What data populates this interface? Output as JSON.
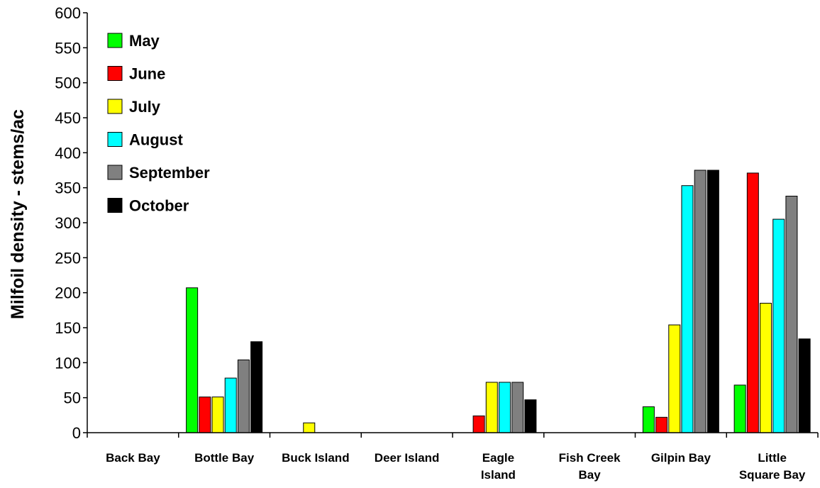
{
  "chart_data": {
    "type": "bar",
    "title": "",
    "xlabel": "",
    "ylabel": "Milfoil density - stems/ac",
    "ylim": [
      0,
      600
    ],
    "yticks": [
      0,
      50,
      100,
      150,
      200,
      250,
      300,
      350,
      400,
      450,
      500,
      550,
      600
    ],
    "grid": false,
    "legend_position": "top-left",
    "categories": [
      [
        "Back Bay"
      ],
      [
        "Bottle Bay"
      ],
      [
        "Buck Island"
      ],
      [
        "Deer Island"
      ],
      [
        "Eagle",
        "Island"
      ],
      [
        "Fish Creek",
        "Bay"
      ],
      [
        "Gilpin Bay"
      ],
      [
        "Little",
        "Square Bay"
      ]
    ],
    "series": [
      {
        "name": "May",
        "color": "#00ff00",
        "values": [
          0,
          207,
          0,
          0,
          0,
          0,
          37,
          68
        ]
      },
      {
        "name": "June",
        "color": "#ff0000",
        "values": [
          0,
          51,
          0,
          0,
          24,
          0,
          22,
          371
        ]
      },
      {
        "name": "July",
        "color": "#ffff00",
        "values": [
          0,
          51,
          14,
          0,
          72,
          0,
          154,
          185
        ]
      },
      {
        "name": "August",
        "color": "#00ffff",
        "values": [
          0,
          78,
          0,
          0,
          72,
          0,
          353,
          305
        ]
      },
      {
        "name": "September",
        "color": "#808080",
        "values": [
          0,
          104,
          0,
          0,
          72,
          0,
          375,
          338
        ]
      },
      {
        "name": "October",
        "color": "#000000",
        "values": [
          0,
          130,
          0,
          0,
          47,
          0,
          375,
          134
        ]
      }
    ]
  }
}
